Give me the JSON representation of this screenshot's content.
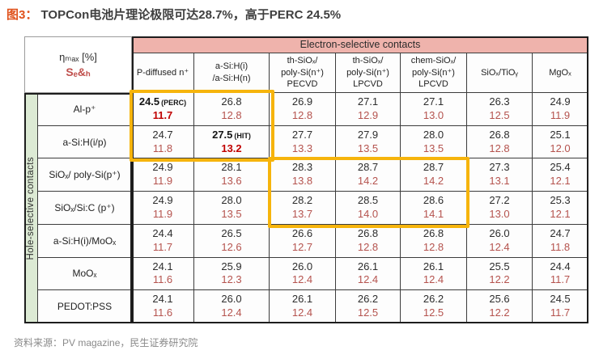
{
  "title": {
    "prefix": "图3：",
    "text": "TOPCon电池片理论极限可达28.7%，高于PERC 24.5%"
  },
  "source": "资料来源：PV magazine，民生证券研究院",
  "colors": {
    "accent_orange": "#E0521C",
    "header_pink": "#EFB3AC",
    "strip_green": "#DCEAD4",
    "highlight_yellow": "#F6B40C",
    "value_black": "#2D2D2D",
    "value_red": "#B5534E",
    "value_red_bold": "#C00000",
    "source_gray": "#8A8A8A"
  },
  "table": {
    "corner": {
      "line1": "ηₘₐₓ [%]",
      "line2": "Sₑ&ₕ"
    },
    "electron_header": "Electron-selective contacts",
    "hole_header": "Hole-selective contacts",
    "columns": [
      "P-diffused n⁺",
      "a-Si:H(i)\n/a-Si:H(n)",
      "th-SiOₓ/\npoly-Si(n⁺)\nPECVD",
      "th-SiOₓ/\npoly-Si(n⁺)\nLPCVD",
      "chem-SiOₓ/\npoly-Si(n⁺)\nLPCVD",
      "SiOₓ/TiOᵧ",
      "MgOₓ"
    ],
    "rows": [
      {
        "label": "Al-p⁺",
        "cells": [
          {
            "v": "24.5",
            "note": "(PERC)",
            "s": "11.7",
            "hl": true
          },
          {
            "v": "26.8",
            "s": "12.8"
          },
          {
            "v": "26.9",
            "s": "12.8"
          },
          {
            "v": "27.1",
            "s": "12.9"
          },
          {
            "v": "27.1",
            "s": "13.0"
          },
          {
            "v": "26.3",
            "s": "12.5"
          },
          {
            "v": "24.9",
            "s": "11.9"
          }
        ]
      },
      {
        "label": "a-Si:H(i/p)",
        "cells": [
          {
            "v": "24.7",
            "s": "11.8"
          },
          {
            "v": "27.5",
            "note": "(HIT)",
            "s": "13.2",
            "hl": true
          },
          {
            "v": "27.7",
            "s": "13.3"
          },
          {
            "v": "27.9",
            "s": "13.5"
          },
          {
            "v": "28.0",
            "s": "13.5"
          },
          {
            "v": "26.8",
            "s": "12.8"
          },
          {
            "v": "25.1",
            "s": "12.0"
          }
        ]
      },
      {
        "label": "SiOₓ/ poly-Si(p⁺)",
        "cells": [
          {
            "v": "24.9",
            "s": "11.9"
          },
          {
            "v": "28.1",
            "s": "13.6"
          },
          {
            "v": "28.3",
            "s": "13.8"
          },
          {
            "v": "28.7",
            "s": "14.2"
          },
          {
            "v": "28.7",
            "s": "14.2"
          },
          {
            "v": "27.3",
            "s": "13.1"
          },
          {
            "v": "25.4",
            "s": "12.1"
          }
        ]
      },
      {
        "label": "SiOₓ/Si:C (p⁺)",
        "cells": [
          {
            "v": "24.9",
            "s": "11.9"
          },
          {
            "v": "28.0",
            "s": "13.5"
          },
          {
            "v": "28.2",
            "s": "13.7"
          },
          {
            "v": "28.5",
            "s": "14.0"
          },
          {
            "v": "28.6",
            "s": "14.1"
          },
          {
            "v": "27.2",
            "s": "13.0"
          },
          {
            "v": "25.3",
            "s": "12.1"
          }
        ]
      },
      {
        "label": "a-Si:H(i)/MoOₓ",
        "cells": [
          {
            "v": "24.4",
            "s": "11.7"
          },
          {
            "v": "26.5",
            "s": "12.6"
          },
          {
            "v": "26.6",
            "s": "12.7"
          },
          {
            "v": "26.8",
            "s": "12.8"
          },
          {
            "v": "26.8",
            "s": "12.8"
          },
          {
            "v": "26.0",
            "s": "12.4"
          },
          {
            "v": "24.7",
            "s": "11.8"
          }
        ]
      },
      {
        "label": "MoOₓ",
        "cells": [
          {
            "v": "24.1",
            "s": "11.6"
          },
          {
            "v": "25.9",
            "s": "12.3"
          },
          {
            "v": "26.0",
            "s": "12.4"
          },
          {
            "v": "26.1",
            "s": "12.4"
          },
          {
            "v": "26.1",
            "s": "12.4"
          },
          {
            "v": "25.5",
            "s": "12.2"
          },
          {
            "v": "24.4",
            "s": "11.7"
          }
        ]
      },
      {
        "label": "PEDOT:PSS",
        "cells": [
          {
            "v": "24.1",
            "s": "11.6"
          },
          {
            "v": "26.0",
            "s": "12.4"
          },
          {
            "v": "26.1",
            "s": "12.4"
          },
          {
            "v": "26.2",
            "s": "12.5"
          },
          {
            "v": "26.2",
            "s": "12.5"
          },
          {
            "v": "25.6",
            "s": "12.2"
          },
          {
            "v": "24.5",
            "s": "11.7"
          }
        ]
      }
    ]
  }
}
